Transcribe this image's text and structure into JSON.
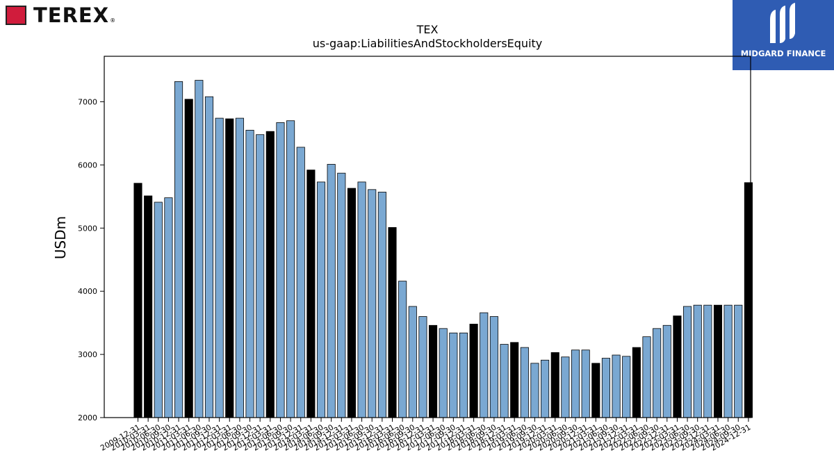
{
  "branding": {
    "left_logo_text": "TEREX",
    "left_logo_reg": "®",
    "left_logo_color": "#d01c3c",
    "right_logo_text": "MIDGARD FINANCE",
    "right_logo_bg": "#2f5cb3"
  },
  "chart_data": {
    "type": "bar",
    "title": "TEX",
    "subtitle": "us-gaap:LiabilitiesAndStockholdersEquity",
    "xlabel": "",
    "ylabel": "USDm",
    "ylim": [
      2000,
      7720
    ],
    "yticks": [
      2000,
      3000,
      4000,
      5000,
      6000,
      7000
    ],
    "grid": false,
    "colors": {
      "quarter": "#7aa8d2",
      "year_end": "#000000"
    },
    "categories": [
      "2009-12-31",
      "2010-03-31",
      "2010-06-30",
      "2010-09-30",
      "2010-12-31",
      "2011-03-31",
      "2011-06-30",
      "2011-09-30",
      "2011-12-31",
      "2012-03-31",
      "2012-06-30",
      "2012-09-30",
      "2012-12-31",
      "2013-03-31",
      "2013-06-30",
      "2013-09-30",
      "2013-12-31",
      "2014-03-31",
      "2014-06-30",
      "2014-09-30",
      "2014-12-31",
      "2015-03-31",
      "2015-06-30",
      "2015-09-30",
      "2015-12-31",
      "2016-03-31",
      "2016-06-30",
      "2016-09-30",
      "2016-12-31",
      "2017-03-31",
      "2017-06-30",
      "2017-09-30",
      "2017-12-31",
      "2018-03-31",
      "2018-06-30",
      "2018-09-30",
      "2018-12-31",
      "2019-03-31",
      "2019-06-30",
      "2019-09-30",
      "2019-12-31",
      "2020-03-31",
      "2020-06-30",
      "2020-09-30",
      "2020-12-31",
      "2021-03-31",
      "2021-06-30",
      "2021-09-30",
      "2021-12-31",
      "2022-03-31",
      "2022-06-30",
      "2022-09-30",
      "2022-12-31",
      "2023-03-31",
      "2023-06-30",
      "2023-09-30",
      "2023-12-31",
      "2024-03-31",
      "2024-06-30",
      "2024-09-30",
      "2024-12-31"
    ],
    "tick_labels": [
      "2009-12-31",
      "2010-03-31",
      "2010-06-30",
      "2010-09-30",
      "2010-12-31",
      "2011-03-31",
      "2011-06-30",
      "2011-09-30",
      "2011-12-31",
      "2012-03-31",
      "2012-06-30",
      "2012-09-30",
      "2012-12-31",
      "2013-03-31",
      "2013-06-30",
      "2013-09-30",
      "2013-12-31",
      "2014-03-31",
      "2014-06-30",
      "2014-09-30",
      "2014-12-31",
      "2015-03-31",
      "2015-06-30",
      "2015-09-30",
      "2015-12-31",
      "2016-03-31",
      "2016-06-30",
      "2016-09-30",
      "2016-12-31",
      "2017-03-31",
      "2017-06-30",
      "2017-09-30",
      "2017-12-31",
      "2018-03-31",
      "2018-06-30",
      "2018-09-30",
      "2018-12-31",
      "2019-03-31",
      "2019-06-30",
      "2019-09-30",
      "2019-12-31",
      "2020-03-31",
      "2020-06-30",
      "2020-09-30",
      "2020-12-31",
      "2021-03-31",
      "2021-06-30",
      "2021-09-30",
      "2021-12-31",
      "2022-03-31",
      "2022-06-30",
      "2022-09-30",
      "2022-12-31",
      "2023-03-31",
      "2023-06-30",
      "2023-09-30",
      "2023-12-31",
      "2024-03-31",
      "2024-06-30",
      "2024-09-30",
      "2024-12-31"
    ],
    "values": [
      5710,
      5510,
      5410,
      5480,
      7320,
      7040,
      7340,
      7080,
      6740,
      6730,
      6740,
      6550,
      6480,
      6530,
      6670,
      6700,
      6280,
      5920,
      5730,
      6010,
      5870,
      5630,
      5730,
      5610,
      5570,
      5010,
      4160,
      3760,
      3600,
      3460,
      3410,
      3340,
      3340,
      3480,
      3660,
      3600,
      3160,
      3190,
      3110,
      2860,
      2910,
      3030,
      2960,
      3070,
      3070,
      2860,
      2940,
      2990,
      2970,
      3110,
      3280,
      3410,
      3460,
      3610,
      3760,
      3780,
      3780,
      3780,
      3780,
      3780,
      5720
    ],
    "year_end": [
      true,
      true,
      false,
      false,
      false,
      true,
      false,
      false,
      false,
      true,
      false,
      false,
      false,
      true,
      false,
      false,
      false,
      true,
      false,
      false,
      false,
      true,
      false,
      false,
      false,
      true,
      false,
      false,
      false,
      true,
      false,
      false,
      false,
      true,
      false,
      false,
      false,
      true,
      false,
      false,
      false,
      true,
      false,
      false,
      false,
      true,
      false,
      false,
      false,
      true,
      false,
      false,
      false,
      true,
      false,
      false,
      false,
      true,
      false,
      false,
      true
    ]
  }
}
